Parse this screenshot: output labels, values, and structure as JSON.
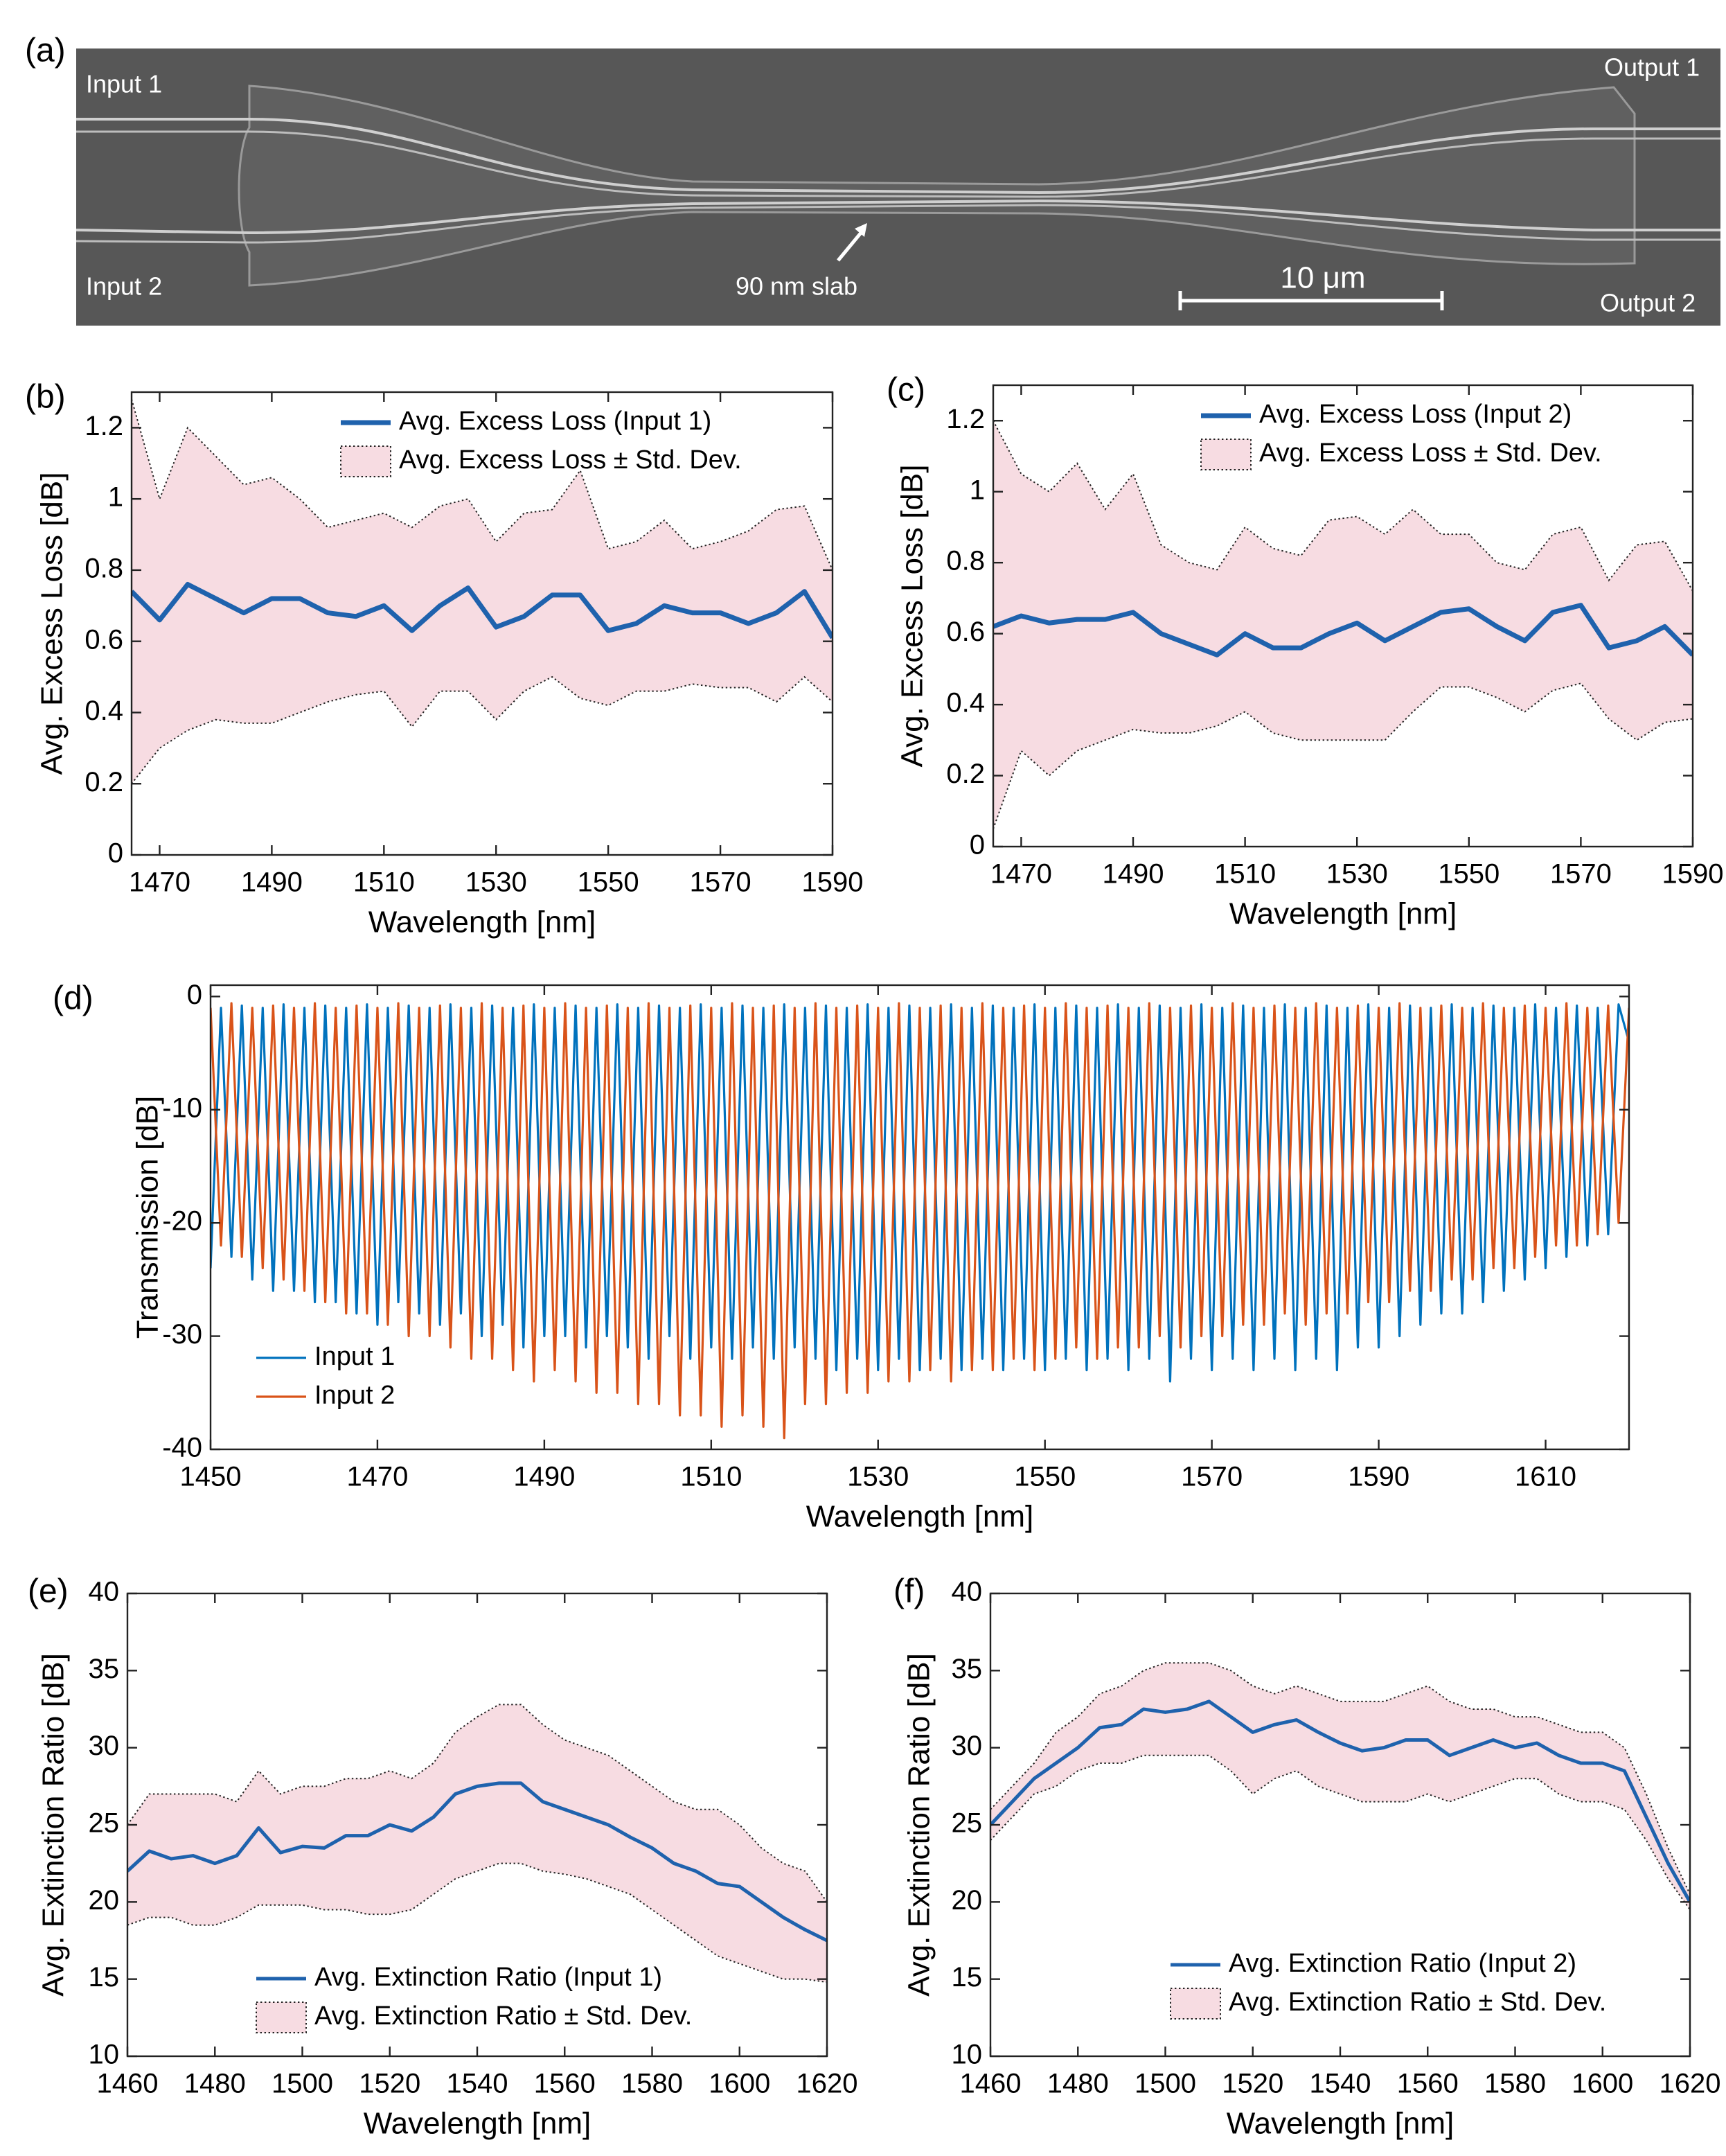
{
  "figure_a": {
    "panel_label": "(a)",
    "input_1": "Input 1",
    "input_2": "Input 2",
    "output_1": "Output 1",
    "output_2": "Output 2",
    "slab": "90 nm slab",
    "scale_bar": "10 μm"
  },
  "chart_data": [
    {
      "type": "line",
      "panel_label": "(b)",
      "x_label": "Wavelength [nm]",
      "y_label": "Avg. Excess Loss [dB]",
      "xlim": [
        1465,
        1590
      ],
      "ylim": [
        0,
        1.3
      ],
      "xticks": [
        1470,
        1490,
        1510,
        1530,
        1550,
        1570,
        1590
      ],
      "yticks": [
        0,
        0.2,
        0.4,
        0.6,
        0.8,
        1,
        1.2
      ],
      "legend": "upper right",
      "x": [
        1465,
        1470,
        1475,
        1480,
        1485,
        1490,
        1495,
        1500,
        1505,
        1510,
        1515,
        1520,
        1525,
        1530,
        1535,
        1540,
        1545,
        1550,
        1555,
        1560,
        1565,
        1570,
        1575,
        1580,
        1585,
        1590
      ],
      "series": [
        {
          "name": "Avg. Excess Loss (Input 1)",
          "color": "#1f62ad",
          "values": [
            0.74,
            0.66,
            0.76,
            0.72,
            0.68,
            0.72,
            0.72,
            0.68,
            0.67,
            0.7,
            0.63,
            0.7,
            0.75,
            0.64,
            0.67,
            0.73,
            0.73,
            0.63,
            0.65,
            0.7,
            0.68,
            0.68,
            0.65,
            0.68,
            0.74,
            0.61
          ]
        },
        {
          "name": "Avg. Excess Loss ± Std. Dev.",
          "color": "#f7dce2",
          "upper": [
            1.28,
            1.0,
            1.2,
            1.12,
            1.04,
            1.06,
            1.0,
            0.92,
            0.94,
            0.96,
            0.92,
            0.98,
            1.0,
            0.88,
            0.96,
            0.97,
            1.08,
            0.86,
            0.88,
            0.94,
            0.86,
            0.88,
            0.91,
            0.97,
            0.98,
            0.8
          ],
          "lower": [
            0.2,
            0.3,
            0.35,
            0.38,
            0.37,
            0.37,
            0.4,
            0.43,
            0.45,
            0.46,
            0.36,
            0.46,
            0.46,
            0.38,
            0.46,
            0.5,
            0.44,
            0.42,
            0.46,
            0.46,
            0.48,
            0.47,
            0.47,
            0.43,
            0.5,
            0.43
          ]
        }
      ]
    },
    {
      "type": "line",
      "panel_label": "(c)",
      "x_label": "Wavelength [nm]",
      "y_label": "Avg. Excess Loss [dB]",
      "xlim": [
        1465,
        1590
      ],
      "ylim": [
        0,
        1.3
      ],
      "xticks": [
        1470,
        1490,
        1510,
        1530,
        1550,
        1570,
        1590
      ],
      "yticks": [
        0,
        0.2,
        0.4,
        0.6,
        0.8,
        1,
        1.2
      ],
      "legend": "upper right",
      "x": [
        1465,
        1470,
        1475,
        1480,
        1485,
        1490,
        1495,
        1500,
        1505,
        1510,
        1515,
        1520,
        1525,
        1530,
        1535,
        1540,
        1545,
        1550,
        1555,
        1560,
        1565,
        1570,
        1575,
        1580,
        1585,
        1590
      ],
      "series": [
        {
          "name": "Avg. Excess Loss (Input 2)",
          "color": "#1f62ad",
          "values": [
            0.62,
            0.65,
            0.63,
            0.64,
            0.64,
            0.66,
            0.6,
            0.57,
            0.54,
            0.6,
            0.56,
            0.56,
            0.6,
            0.63,
            0.58,
            0.62,
            0.66,
            0.67,
            0.62,
            0.58,
            0.66,
            0.68,
            0.56,
            0.58,
            0.62,
            0.54
          ]
        },
        {
          "name": "Avg. Excess Loss ± Std. Dev.",
          "color": "#f7dce2",
          "upper": [
            1.2,
            1.05,
            1.0,
            1.08,
            0.95,
            1.05,
            0.85,
            0.8,
            0.78,
            0.9,
            0.84,
            0.82,
            0.92,
            0.93,
            0.88,
            0.95,
            0.88,
            0.88,
            0.8,
            0.78,
            0.88,
            0.9,
            0.75,
            0.85,
            0.86,
            0.72
          ],
          "lower": [
            0.05,
            0.27,
            0.2,
            0.27,
            0.3,
            0.33,
            0.32,
            0.32,
            0.34,
            0.38,
            0.32,
            0.3,
            0.3,
            0.3,
            0.3,
            0.38,
            0.45,
            0.45,
            0.42,
            0.38,
            0.44,
            0.46,
            0.36,
            0.3,
            0.35,
            0.36
          ]
        }
      ]
    },
    {
      "type": "line",
      "panel_label": "(d)",
      "x_label": "Wavelength [nm]",
      "y_label": "Transmission [dB]",
      "xlim": [
        1450,
        1620
      ],
      "ylim": [
        -40,
        1
      ],
      "xticks": [
        1450,
        1470,
        1490,
        1510,
        1530,
        1550,
        1570,
        1590,
        1610
      ],
      "yticks": [
        0,
        -10,
        -20,
        -30,
        -40
      ],
      "legend": "lower left",
      "x": [
        1450,
        1451.25,
        1452.5,
        1453.75,
        1455,
        1456.25,
        1457.5,
        1458.75,
        1460,
        1461.25,
        1462.5,
        1463.75,
        1465,
        1466.25,
        1467.5,
        1468.75,
        1470,
        1471.25,
        1472.5,
        1473.75,
        1475,
        1476.25,
        1477.5,
        1478.75,
        1480,
        1481.25,
        1482.5,
        1483.75,
        1485,
        1486.25,
        1487.5,
        1488.75,
        1490,
        1491.25,
        1492.5,
        1493.75,
        1495,
        1496.25,
        1497.5,
        1498.75,
        1500,
        1501.25,
        1502.5,
        1503.75,
        1505,
        1506.25,
        1507.5,
        1508.75,
        1510,
        1511.25,
        1512.5,
        1513.75,
        1515,
        1516.25,
        1517.5,
        1518.75,
        1520,
        1521.25,
        1522.5,
        1523.75,
        1525,
        1526.25,
        1527.5,
        1528.75,
        1530,
        1531.25,
        1532.5,
        1533.75,
        1535,
        1536.25,
        1537.5,
        1538.75,
        1540,
        1541.25,
        1542.5,
        1543.75,
        1545,
        1546.25,
        1547.5,
        1548.75,
        1550,
        1551.25,
        1552.5,
        1553.75,
        1555,
        1556.25,
        1557.5,
        1558.75,
        1560,
        1561.25,
        1562.5,
        1563.75,
        1565,
        1566.25,
        1567.5,
        1568.75,
        1570,
        1571.25,
        1572.5,
        1573.75,
        1575,
        1576.25,
        1577.5,
        1578.75,
        1580,
        1581.25,
        1582.5,
        1583.75,
        1585,
        1586.25,
        1587.5,
        1588.75,
        1590,
        1591.25,
        1592.5,
        1593.75,
        1595,
        1596.25,
        1597.5,
        1598.75,
        1600,
        1601.25,
        1602.5,
        1603.75,
        1605,
        1606.25,
        1607.5,
        1608.75,
        1610,
        1611.25,
        1612.5,
        1613.75,
        1615,
        1616.25,
        1617.5,
        1618.75,
        1620
      ],
      "series": [
        {
          "name": "Input 1",
          "color": "#0072bd",
          "values": [
            -24,
            -1,
            -23,
            -0.8,
            -25,
            -1,
            -26,
            -0.7,
            -26,
            -1,
            -27,
            -0.8,
            -27,
            -1,
            -28,
            -0.7,
            -29,
            -1,
            -27,
            -0.8,
            -28,
            -1,
            -29,
            -0.7,
            -28,
            -1,
            -30,
            -0.8,
            -29,
            -1,
            -31,
            -0.7,
            -30,
            -1,
            -30,
            -0.8,
            -31,
            -1,
            -30,
            -0.7,
            -31,
            -1,
            -32,
            -0.8,
            -30,
            -1,
            -32,
            -0.7,
            -31,
            -1,
            -32,
            -0.8,
            -31,
            -1,
            -32,
            -0.7,
            -31,
            -1,
            -32,
            -0.8,
            -33,
            -1,
            -32,
            -0.7,
            -33,
            -1,
            -32,
            -0.8,
            -33,
            -1,
            -32,
            -0.7,
            -33,
            -1,
            -32,
            -0.8,
            -33,
            -1,
            -32,
            -0.7,
            -33,
            -1,
            -32,
            -0.8,
            -33,
            -1,
            -32,
            -0.7,
            -33,
            -1,
            -32,
            -0.8,
            -34,
            -1,
            -32,
            -0.7,
            -33,
            -1,
            -32,
            -0.8,
            -33,
            -1,
            -32,
            -0.7,
            -33,
            -1,
            -32,
            -0.8,
            -33,
            -1,
            -31,
            -0.7,
            -31,
            -1,
            -30,
            -0.8,
            -29,
            -1,
            -28,
            -0.7,
            -28,
            -1,
            -27,
            -0.8,
            -26,
            -1,
            -25,
            -0.7,
            -24,
            -1,
            -23,
            -0.8,
            -22,
            -1,
            -21,
            -0.7,
            -4
          ]
        },
        {
          "name": "Input 2",
          "color": "#d95319",
          "values": [
            -1,
            -22,
            -0.6,
            -23,
            -1,
            -24,
            -0.8,
            -25,
            -1,
            -26,
            -0.6,
            -27,
            -1,
            -28,
            -0.8,
            -28,
            -1,
            -29,
            -0.6,
            -30,
            -1,
            -30,
            -0.8,
            -31,
            -1,
            -32,
            -0.6,
            -32,
            -1,
            -33,
            -0.8,
            -34,
            -1,
            -33,
            -0.6,
            -34,
            -1,
            -35,
            -0.8,
            -35,
            -1,
            -36,
            -0.6,
            -36,
            -1,
            -37,
            -0.8,
            -37,
            -1,
            -38,
            -0.6,
            -37,
            -1,
            -38,
            -0.8,
            -39,
            -1,
            -36,
            -0.6,
            -36,
            -1,
            -35,
            -0.8,
            -35,
            -1,
            -34,
            -0.6,
            -34,
            -1,
            -33,
            -0.8,
            -34,
            -1,
            -33,
            -0.6,
            -33,
            -1,
            -32,
            -0.8,
            -33,
            -1,
            -32,
            -0.6,
            -31,
            -1,
            -32,
            -0.8,
            -31,
            -1,
            -31,
            -0.6,
            -30,
            -1,
            -31,
            -0.8,
            -30,
            -1,
            -30,
            -0.6,
            -29,
            -1,
            -29,
            -0.8,
            -28,
            -1,
            -29,
            -0.6,
            -28,
            -1,
            -28,
            -0.8,
            -27,
            -1,
            -27,
            -0.6,
            -26,
            -1,
            -26,
            -0.8,
            -25,
            -1,
            -25,
            -0.6,
            -24,
            -1,
            -24,
            -0.8,
            -23,
            -1,
            -22,
            -0.6,
            -22,
            -1,
            -21,
            -0.8,
            -20,
            -1
          ]
        }
      ]
    },
    {
      "type": "line",
      "panel_label": "(e)",
      "x_label": "Wavelength [nm]",
      "y_label": "Avg. Extinction Ratio [dB]",
      "xlim": [
        1460,
        1620
      ],
      "ylim": [
        10,
        40
      ],
      "xticks": [
        1460,
        1480,
        1500,
        1520,
        1540,
        1560,
        1580,
        1600,
        1620
      ],
      "yticks": [
        10,
        15,
        20,
        25,
        30,
        35,
        40
      ],
      "legend": "lower center",
      "x": [
        1460,
        1465,
        1470,
        1475,
        1480,
        1485,
        1490,
        1495,
        1500,
        1505,
        1510,
        1515,
        1520,
        1525,
        1530,
        1535,
        1540,
        1545,
        1550,
        1555,
        1560,
        1565,
        1570,
        1575,
        1580,
        1585,
        1590,
        1595,
        1600,
        1605,
        1610,
        1615,
        1620
      ],
      "series": [
        {
          "name": "Avg. Extinction Ratio (Input 1)",
          "color": "#1f62ad",
          "values": [
            22,
            23.3,
            22.8,
            23,
            22.5,
            23,
            24.8,
            23.2,
            23.6,
            23.5,
            24.3,
            24.3,
            25,
            24.6,
            25.5,
            27,
            27.5,
            27.7,
            27.7,
            26.5,
            26,
            25.5,
            25,
            24.2,
            23.5,
            22.5,
            22,
            21.2,
            21,
            20,
            19,
            18.2,
            17.5
          ]
        },
        {
          "name": "Avg. Extinction Ratio ± Std. Dev.",
          "color": "#f7dce2",
          "upper": [
            25,
            27,
            27,
            27,
            27,
            26.5,
            28.5,
            27,
            27.5,
            27.5,
            28,
            28,
            28.5,
            28,
            29,
            31,
            32,
            32.8,
            32.8,
            31.5,
            30.5,
            30,
            29.5,
            28.5,
            27.5,
            26.5,
            26,
            26,
            25,
            23.5,
            22.5,
            22,
            20
          ],
          "lower": [
            18.5,
            19,
            19,
            18.5,
            18.5,
            19,
            19.8,
            19.8,
            19.8,
            19.5,
            19.5,
            19.2,
            19.2,
            19.5,
            20.5,
            21.5,
            22,
            22.5,
            22.5,
            22,
            21.8,
            21.5,
            21,
            20.5,
            19.5,
            18.5,
            17.5,
            16.5,
            16,
            15.5,
            15,
            15,
            14.8
          ]
        }
      ]
    },
    {
      "type": "line",
      "panel_label": "(f)",
      "x_label": "Wavelength [nm]",
      "y_label": "Avg. Extinction Ratio [dB]",
      "xlim": [
        1460,
        1620
      ],
      "ylim": [
        10,
        40
      ],
      "xticks": [
        1460,
        1480,
        1500,
        1520,
        1540,
        1560,
        1580,
        1600,
        1620
      ],
      "yticks": [
        10,
        15,
        20,
        25,
        30,
        35,
        40
      ],
      "legend": "lower right",
      "x": [
        1460,
        1465,
        1470,
        1475,
        1480,
        1485,
        1490,
        1495,
        1500,
        1505,
        1510,
        1515,
        1520,
        1525,
        1530,
        1535,
        1540,
        1545,
        1550,
        1555,
        1560,
        1565,
        1570,
        1575,
        1580,
        1585,
        1590,
        1595,
        1600,
        1605,
        1610,
        1615,
        1620
      ],
      "series": [
        {
          "name": "Avg. Extinction Ratio (Input 2)",
          "color": "#1f62ad",
          "values": [
            25,
            26.5,
            28,
            29,
            30,
            31.3,
            31.5,
            32.5,
            32.3,
            32.5,
            33,
            32,
            31,
            31.5,
            31.8,
            31,
            30.3,
            29.8,
            30,
            30.5,
            30.5,
            29.5,
            30,
            30.5,
            30,
            30.3,
            29.5,
            29,
            29,
            28.5,
            25.5,
            22.5,
            20
          ]
        },
        {
          "name": "Avg. Extinction Ratio ± Std. Dev.",
          "color": "#f7dce2",
          "upper": [
            26,
            27.5,
            29,
            31,
            32,
            33.5,
            34,
            35,
            35.5,
            35.5,
            35.5,
            35,
            34,
            33.5,
            34,
            33.5,
            33,
            33,
            33,
            33.5,
            34,
            33,
            32.5,
            32.5,
            32,
            32,
            31.5,
            31,
            31,
            30,
            27,
            23.5,
            20.5
          ],
          "lower": [
            24,
            25.5,
            27,
            27.5,
            28.5,
            29,
            29,
            29.5,
            29.5,
            29.5,
            29.5,
            28.5,
            27,
            28,
            28.5,
            27.5,
            27,
            26.5,
            26.5,
            26.5,
            27,
            26.5,
            27,
            27.5,
            28,
            28,
            27,
            26.5,
            26.5,
            26,
            24,
            21.5,
            19.5
          ]
        }
      ]
    }
  ]
}
